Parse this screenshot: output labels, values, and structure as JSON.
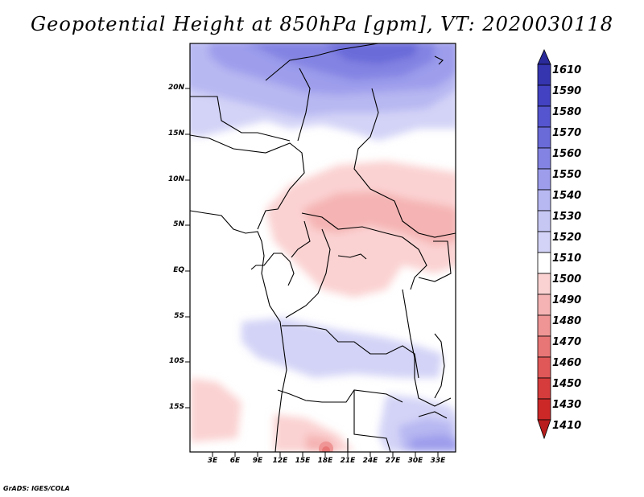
{
  "title": "Geopotential Height at 850hPa [gpm], VT: 2020030118",
  "credit": "GrADS: IGES/COLA",
  "map": {
    "lat_labels": [
      "20N",
      "15N",
      "10N",
      "5N",
      "EQ",
      "5S",
      "10S",
      "15S"
    ],
    "lon_labels": [
      "3E",
      "6E",
      "9E",
      "12E",
      "15E",
      "18E",
      "21E",
      "24E",
      "27E",
      "30E",
      "33E"
    ],
    "region": "Central Africa"
  },
  "colorbar": {
    "levels": [
      "1610",
      "1590",
      "1580",
      "1570",
      "1560",
      "1550",
      "1540",
      "1530",
      "1520",
      "1510",
      "1500",
      "1490",
      "1480",
      "1470",
      "1460",
      "1450",
      "1430",
      "1410"
    ],
    "colors": [
      "#2a2a9a",
      "#3535b0",
      "#4242c2",
      "#5555cf",
      "#6a6ad9",
      "#8383e3",
      "#9d9dec",
      "#b7b7f2",
      "#d3d3f7",
      "#ffffff",
      "#fbd2d2",
      "#f5b3b3",
      "#ef9595",
      "#e87676",
      "#e05858",
      "#d63c3c",
      "#cc2828",
      "#b81c1c"
    ]
  }
}
